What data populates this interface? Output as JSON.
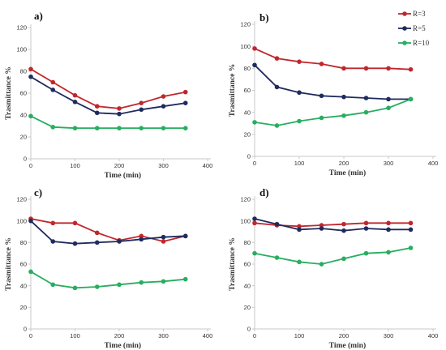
{
  "colors": {
    "R=3": "#c0272d",
    "R=5": "#1f2b5e",
    "R=10": "#27ae60",
    "axis": "#c8c8c8"
  },
  "legend": [
    "R=3",
    "R=5",
    "R=10"
  ],
  "chart_data": [
    {
      "type": "line",
      "panel_label": "a)",
      "x": [
        0,
        50,
        100,
        150,
        200,
        250,
        300,
        350
      ],
      "xlabel": "Time (min)",
      "ylabel": "Trasmittance %",
      "xlim": [
        0,
        400
      ],
      "ylim": [
        0,
        120
      ],
      "xticks": [
        0,
        100,
        200,
        300,
        400
      ],
      "yticks": [
        0,
        20,
        40,
        60,
        80,
        100,
        120
      ],
      "series": [
        {
          "name": "R=3",
          "values": [
            82,
            70,
            58,
            48,
            46,
            51,
            57,
            61
          ]
        },
        {
          "name": "R=5",
          "values": [
            75,
            63,
            52,
            42,
            41,
            45,
            48,
            51
          ]
        },
        {
          "name": "R=10",
          "values": [
            39,
            29,
            28,
            28,
            28,
            28,
            28,
            28
          ]
        }
      ]
    },
    {
      "type": "line",
      "panel_label": "b)",
      "x": [
        0,
        50,
        100,
        150,
        200,
        250,
        300,
        350
      ],
      "xlabel": "Time (min)",
      "ylabel": "Trasmittance %",
      "xlim": [
        0,
        400
      ],
      "ylim": [
        0,
        120
      ],
      "xticks": [
        0,
        100,
        200,
        300,
        400
      ],
      "yticks": [
        0,
        20,
        40,
        60,
        80,
        100,
        120
      ],
      "series": [
        {
          "name": "R=3",
          "values": [
            98,
            89,
            86,
            84,
            80,
            80,
            80,
            79
          ]
        },
        {
          "name": "R=5",
          "values": [
            83,
            63,
            58,
            55,
            54,
            53,
            52,
            52
          ]
        },
        {
          "name": "R=10",
          "values": [
            31,
            28,
            32,
            35,
            37,
            40,
            44,
            52
          ]
        }
      ]
    },
    {
      "type": "line",
      "panel_label": "c)",
      "x": [
        0,
        50,
        100,
        150,
        200,
        250,
        300,
        350
      ],
      "xlabel": "Time (min)",
      "ylabel": "Trasmittance %",
      "xlim": [
        0,
        400
      ],
      "ylim": [
        0,
        120
      ],
      "xticks": [
        0,
        100,
        200,
        300,
        400
      ],
      "yticks": [
        0,
        20,
        40,
        60,
        80,
        100,
        120
      ],
      "series": [
        {
          "name": "R=3",
          "values": [
            102,
            98,
            98,
            89,
            82,
            86,
            81,
            86
          ]
        },
        {
          "name": "R=5",
          "values": [
            100,
            81,
            79,
            80,
            81,
            83,
            85,
            86
          ]
        },
        {
          "name": "R=10",
          "values": [
            53,
            41,
            38,
            39,
            41,
            43,
            44,
            46
          ]
        }
      ]
    },
    {
      "type": "line",
      "panel_label": "d)",
      "x": [
        0,
        50,
        100,
        150,
        200,
        250,
        300,
        350
      ],
      "xlabel": "Time (min)",
      "ylabel": "Trasmittance %",
      "xlim": [
        0,
        400
      ],
      "ylim": [
        0,
        120
      ],
      "xticks": [
        0,
        100,
        200,
        300,
        400
      ],
      "yticks": [
        0,
        20,
        40,
        60,
        80,
        100,
        120
      ],
      "series": [
        {
          "name": "R=3",
          "values": [
            98,
            96,
            95,
            96,
            97,
            98,
            98,
            98
          ]
        },
        {
          "name": "R=5",
          "values": [
            102,
            97,
            92,
            93,
            91,
            93,
            92,
            92
          ]
        },
        {
          "name": "R=10",
          "values": [
            70,
            66,
            62,
            60,
            65,
            70,
            71,
            75
          ]
        }
      ]
    }
  ]
}
